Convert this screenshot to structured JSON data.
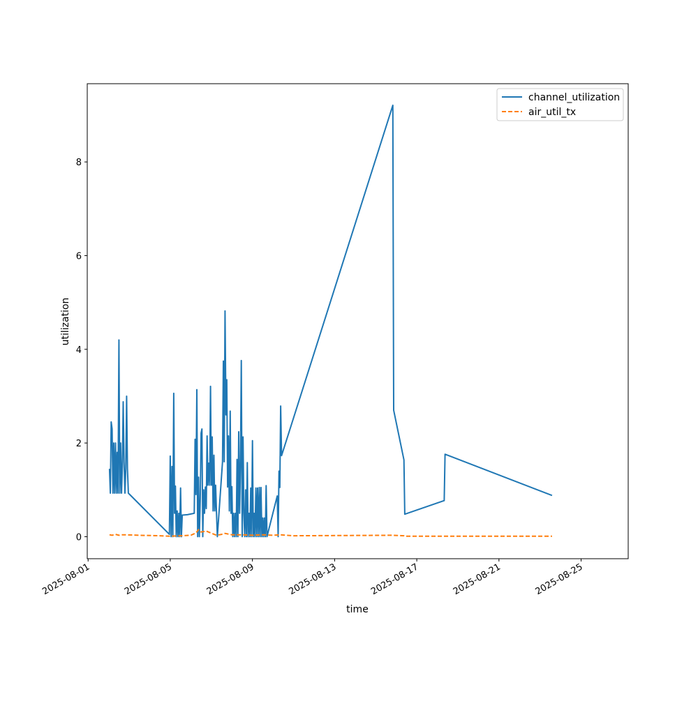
{
  "chart_data": {
    "type": "line",
    "title": "",
    "xlabel": "time",
    "ylabel": "utilization",
    "x_axis_type": "date",
    "xlim": [
      "2025-07-31T23:00",
      "2025-08-27T07:00"
    ],
    "ylim": [
      -0.47,
      9.67
    ],
    "x_ticks": [
      "2025-08-01",
      "2025-08-05",
      "2025-08-09",
      "2025-08-13",
      "2025-08-17",
      "2025-08-21",
      "2025-08-25"
    ],
    "y_ticks": [
      0,
      2,
      4,
      6,
      8
    ],
    "grid": false,
    "legend": {
      "position": "top-right",
      "entries": [
        "channel_utilization",
        "air_util_tx"
      ]
    },
    "series": [
      {
        "name": "channel_utilization",
        "color": "#1f77b4",
        "style": "solid",
        "points": [
          [
            "2025-08-02T01:00",
            1.45
          ],
          [
            "2025-08-02T02:00",
            0.93
          ],
          [
            "2025-08-02T03:00",
            2.45
          ],
          [
            "2025-08-02T04:00",
            2.3
          ],
          [
            "2025-08-02T05:00",
            0.93
          ],
          [
            "2025-08-02T06:00",
            2.0
          ],
          [
            "2025-08-02T07:00",
            0.93
          ],
          [
            "2025-08-02T08:00",
            2.0
          ],
          [
            "2025-08-02T09:00",
            0.93
          ],
          [
            "2025-08-02T10:00",
            1.8
          ],
          [
            "2025-08-02T11:00",
            0.93
          ],
          [
            "2025-08-02T12:00",
            4.2
          ],
          [
            "2025-08-02T13:00",
            0.93
          ],
          [
            "2025-08-02T14:00",
            2.0
          ],
          [
            "2025-08-02T15:00",
            0.93
          ],
          [
            "2025-08-02T16:00",
            1.5
          ],
          [
            "2025-08-02T17:00",
            2.88
          ],
          [
            "2025-08-02T18:00",
            1.6
          ],
          [
            "2025-08-02T19:00",
            0.93
          ],
          [
            "2025-08-02T20:00",
            1.45
          ],
          [
            "2025-08-02T21:00",
            3.0
          ],
          [
            "2025-08-02T22:00",
            1.45
          ],
          [
            "2025-08-02T23:00",
            0.93
          ],
          [
            "2025-08-04T23:00",
            0.05
          ],
          [
            "2025-08-05T00:00",
            1.72
          ],
          [
            "2025-08-05T01:00",
            0.0
          ],
          [
            "2025-08-05T02:00",
            1.5
          ],
          [
            "2025-08-05T03:00",
            0.0
          ],
          [
            "2025-08-05T04:00",
            3.06
          ],
          [
            "2025-08-05T05:00",
            0.5
          ],
          [
            "2025-08-05T06:00",
            1.08
          ],
          [
            "2025-08-05T07:00",
            0.0
          ],
          [
            "2025-08-05T08:00",
            0.55
          ],
          [
            "2025-08-05T09:00",
            0.0
          ],
          [
            "2025-08-05T10:00",
            0.5
          ],
          [
            "2025-08-05T11:00",
            0.0
          ],
          [
            "2025-08-05T12:00",
            1.04
          ],
          [
            "2025-08-05T13:00",
            0.0
          ],
          [
            "2025-08-05T14:00",
            0.46
          ],
          [
            "2025-08-05T20:00",
            0.47
          ],
          [
            "2025-08-06T04:00",
            0.5
          ],
          [
            "2025-08-06T05:00",
            2.08
          ],
          [
            "2025-08-06T06:00",
            0.9
          ],
          [
            "2025-08-06T07:00",
            3.14
          ],
          [
            "2025-08-06T08:00",
            0.0
          ],
          [
            "2025-08-06T09:00",
            1.27
          ],
          [
            "2025-08-06T10:00",
            0.0
          ],
          [
            "2025-08-06T11:00",
            0.8
          ],
          [
            "2025-08-06T12:00",
            2.21
          ],
          [
            "2025-08-06T13:00",
            2.3
          ],
          [
            "2025-08-06T14:00",
            0.0
          ],
          [
            "2025-08-06T15:00",
            1.0
          ],
          [
            "2025-08-06T16:00",
            0.5
          ],
          [
            "2025-08-06T17:00",
            1.06
          ],
          [
            "2025-08-06T18:00",
            0.6
          ],
          [
            "2025-08-06T19:00",
            2.15
          ],
          [
            "2025-08-06T20:00",
            1.1
          ],
          [
            "2025-08-06T21:00",
            1.57
          ],
          [
            "2025-08-06T22:00",
            1.1
          ],
          [
            "2025-08-06T23:00",
            3.21
          ],
          [
            "2025-08-07T00:00",
            1.1
          ],
          [
            "2025-08-07T01:00",
            2.13
          ],
          [
            "2025-08-07T02:00",
            0.55
          ],
          [
            "2025-08-07T03:00",
            1.74
          ],
          [
            "2025-08-07T04:00",
            0.55
          ],
          [
            "2025-08-07T05:00",
            1.1
          ],
          [
            "2025-08-07T06:00",
            0.5
          ],
          [
            "2025-08-07T07:00",
            0.0
          ],
          [
            "2025-08-07T13:00",
            1.6
          ],
          [
            "2025-08-07T14:00",
            3.75
          ],
          [
            "2025-08-07T15:00",
            1.6
          ],
          [
            "2025-08-07T16:00",
            4.82
          ],
          [
            "2025-08-07T17:00",
            2.6
          ],
          [
            "2025-08-07T18:00",
            3.35
          ],
          [
            "2025-08-07T19:00",
            1.06
          ],
          [
            "2025-08-07T20:00",
            2.15
          ],
          [
            "2025-08-07T21:00",
            0.55
          ],
          [
            "2025-08-07T22:00",
            2.68
          ],
          [
            "2025-08-07T23:00",
            0.5
          ],
          [
            "2025-08-08T00:00",
            1.07
          ],
          [
            "2025-08-08T01:00",
            0.0
          ],
          [
            "2025-08-08T02:00",
            0.5
          ],
          [
            "2025-08-08T03:00",
            0.0
          ],
          [
            "2025-08-08T04:00",
            0.5
          ],
          [
            "2025-08-08T05:00",
            0.0
          ],
          [
            "2025-08-08T06:00",
            1.65
          ],
          [
            "2025-08-08T07:00",
            0.0
          ],
          [
            "2025-08-08T08:00",
            2.24
          ],
          [
            "2025-08-08T09:00",
            0.5
          ],
          [
            "2025-08-08T10:00",
            1.5
          ],
          [
            "2025-08-08T11:00",
            3.76
          ],
          [
            "2025-08-08T12:00",
            0.0
          ],
          [
            "2025-08-08T13:00",
            2.13
          ],
          [
            "2025-08-08T14:00",
            0.5
          ],
          [
            "2025-08-08T15:00",
            0.0
          ],
          [
            "2025-08-08T16:00",
            1.0
          ],
          [
            "2025-08-08T17:00",
            0.0
          ],
          [
            "2025-08-08T18:00",
            1.58
          ],
          [
            "2025-08-08T19:00",
            0.0
          ],
          [
            "2025-08-08T20:00",
            0.5
          ],
          [
            "2025-08-08T21:00",
            0.0
          ],
          [
            "2025-08-08T22:00",
            1.04
          ],
          [
            "2025-08-08T23:00",
            0.0
          ],
          [
            "2025-08-09T00:00",
            2.05
          ],
          [
            "2025-08-09T01:00",
            0.0
          ],
          [
            "2025-08-09T02:00",
            0.5
          ],
          [
            "2025-08-09T03:00",
            0.0
          ],
          [
            "2025-08-09T04:00",
            1.04
          ],
          [
            "2025-08-09T05:00",
            0.0
          ],
          [
            "2025-08-09T06:00",
            1.04
          ],
          [
            "2025-08-09T07:00",
            0.0
          ],
          [
            "2025-08-09T08:00",
            1.05
          ],
          [
            "2025-08-09T09:00",
            0.0
          ],
          [
            "2025-08-09T10:00",
            1.05
          ],
          [
            "2025-08-09T11:00",
            0.0
          ],
          [
            "2025-08-09T12:00",
            0.4
          ],
          [
            "2025-08-09T13:00",
            0.0
          ],
          [
            "2025-08-09T14:00",
            0.4
          ],
          [
            "2025-08-09T15:00",
            0.0
          ],
          [
            "2025-08-09T16:00",
            1.09
          ],
          [
            "2025-08-09T17:00",
            0.0
          ],
          [
            "2025-08-10T05:00",
            0.87
          ],
          [
            "2025-08-10T06:00",
            0.0
          ],
          [
            "2025-08-10T07:00",
            1.4
          ],
          [
            "2025-08-10T08:00",
            1.05
          ],
          [
            "2025-08-10T09:00",
            2.79
          ],
          [
            "2025-08-10T10:00",
            1.73
          ],
          [
            "2025-08-15T20:00",
            9.21
          ],
          [
            "2025-08-15T21:00",
            2.7
          ],
          [
            "2025-08-16T09:00",
            1.64
          ],
          [
            "2025-08-16T10:00",
            0.48
          ],
          [
            "2025-08-18T08:00",
            0.77
          ],
          [
            "2025-08-18T09:00",
            1.76
          ],
          [
            "2025-08-23T14:00",
            0.88
          ]
        ]
      },
      {
        "name": "air_util_tx",
        "color": "#ff7f0e",
        "style": "dashed",
        "points": [
          [
            "2025-08-02T01:00",
            0.04
          ],
          [
            "2025-08-02T04:00",
            0.03
          ],
          [
            "2025-08-02T08:00",
            0.05
          ],
          [
            "2025-08-02T12:00",
            0.03
          ],
          [
            "2025-08-02T16:00",
            0.04
          ],
          [
            "2025-08-02T20:00",
            0.04
          ],
          [
            "2025-08-03T12:00",
            0.03
          ],
          [
            "2025-08-04T12:00",
            0.02
          ],
          [
            "2025-08-05T00:00",
            0.01
          ],
          [
            "2025-08-05T12:00",
            0.02
          ],
          [
            "2025-08-06T00:00",
            0.03
          ],
          [
            "2025-08-06T06:00",
            0.08
          ],
          [
            "2025-08-06T09:00",
            0.15
          ],
          [
            "2025-08-06T12:00",
            0.1
          ],
          [
            "2025-08-06T18:00",
            0.12
          ],
          [
            "2025-08-06T22:00",
            0.09
          ],
          [
            "2025-08-07T02:00",
            0.06
          ],
          [
            "2025-08-07T06:00",
            0.03
          ],
          [
            "2025-08-07T12:00",
            0.05
          ],
          [
            "2025-08-07T16:00",
            0.07
          ],
          [
            "2025-08-08T00:00",
            0.04
          ],
          [
            "2025-08-08T12:00",
            0.04
          ],
          [
            "2025-08-09T00:00",
            0.03
          ],
          [
            "2025-08-09T12:00",
            0.04
          ],
          [
            "2025-08-10T00:00",
            0.03
          ],
          [
            "2025-08-10T08:00",
            0.04
          ],
          [
            "2025-08-11T00:00",
            0.02
          ],
          [
            "2025-08-15T20:00",
            0.03
          ],
          [
            "2025-08-16T09:00",
            0.02
          ],
          [
            "2025-08-16T10:00",
            0.01
          ],
          [
            "2025-08-18T08:00",
            0.01
          ],
          [
            "2025-08-23T14:00",
            0.01
          ]
        ]
      }
    ]
  }
}
